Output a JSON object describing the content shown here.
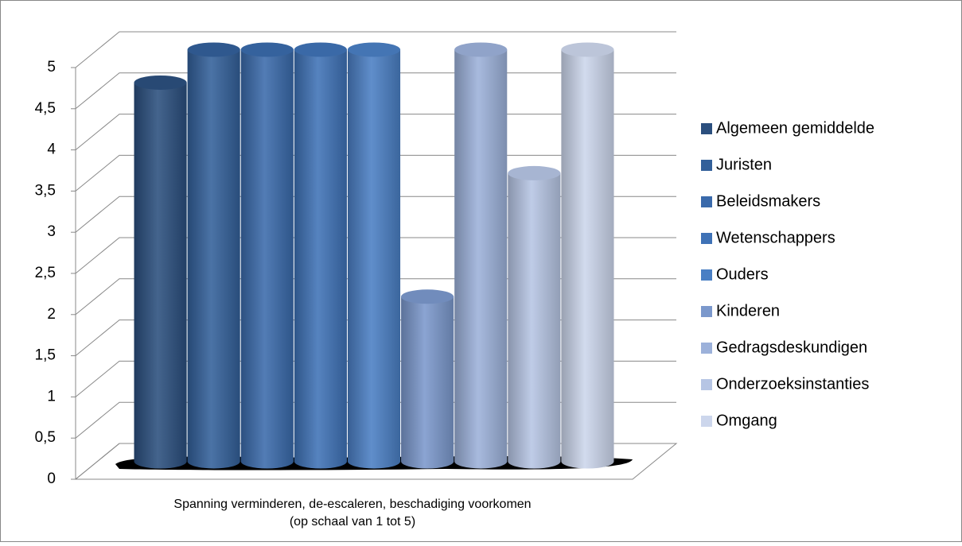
{
  "chart_data": {
    "type": "bar3d",
    "categories": [
      "Spanning verminderen, de-escaleren, beschadiging voorkomen"
    ],
    "x_label": "(op schaal van 1 tot 5)",
    "series": [
      {
        "name": "Algemeen gemiddelde",
        "color": "#2b4f7e",
        "values": [
          4.6
        ]
      },
      {
        "name": "Juristen",
        "color": "#33609a",
        "values": [
          5
        ]
      },
      {
        "name": "Beleidsmakers",
        "color": "#3a6aab",
        "values": [
          5
        ]
      },
      {
        "name": "Wetenschappers",
        "color": "#3f72b6",
        "values": [
          5
        ]
      },
      {
        "name": "Ouders",
        "color": "#4a7fc4",
        "values": [
          5
        ]
      },
      {
        "name": "Kinderen",
        "color": "#7b98cc",
        "values": [
          2
        ]
      },
      {
        "name": "Gedragsdeskundigen",
        "color": "#9cb1da",
        "values": [
          5
        ]
      },
      {
        "name": "Onderzoeksinstanties",
        "color": "#b6c5e4",
        "values": [
          3.5
        ]
      },
      {
        "name": "Omgang",
        "color": "#ccd6ec",
        "values": [
          5
        ]
      }
    ],
    "ylim": [
      0,
      5
    ],
    "yticks": [
      0,
      {
        "value": 0.5,
        "label": "0,5"
      },
      1,
      {
        "value": 1.5,
        "label": "1,5"
      },
      2,
      {
        "value": 2.5,
        "label": "2,5"
      },
      3,
      {
        "value": 3.5,
        "label": "3,5"
      },
      4,
      {
        "value": 4.5,
        "label": "4,5"
      },
      5
    ],
    "grid": true,
    "legend": "right"
  }
}
